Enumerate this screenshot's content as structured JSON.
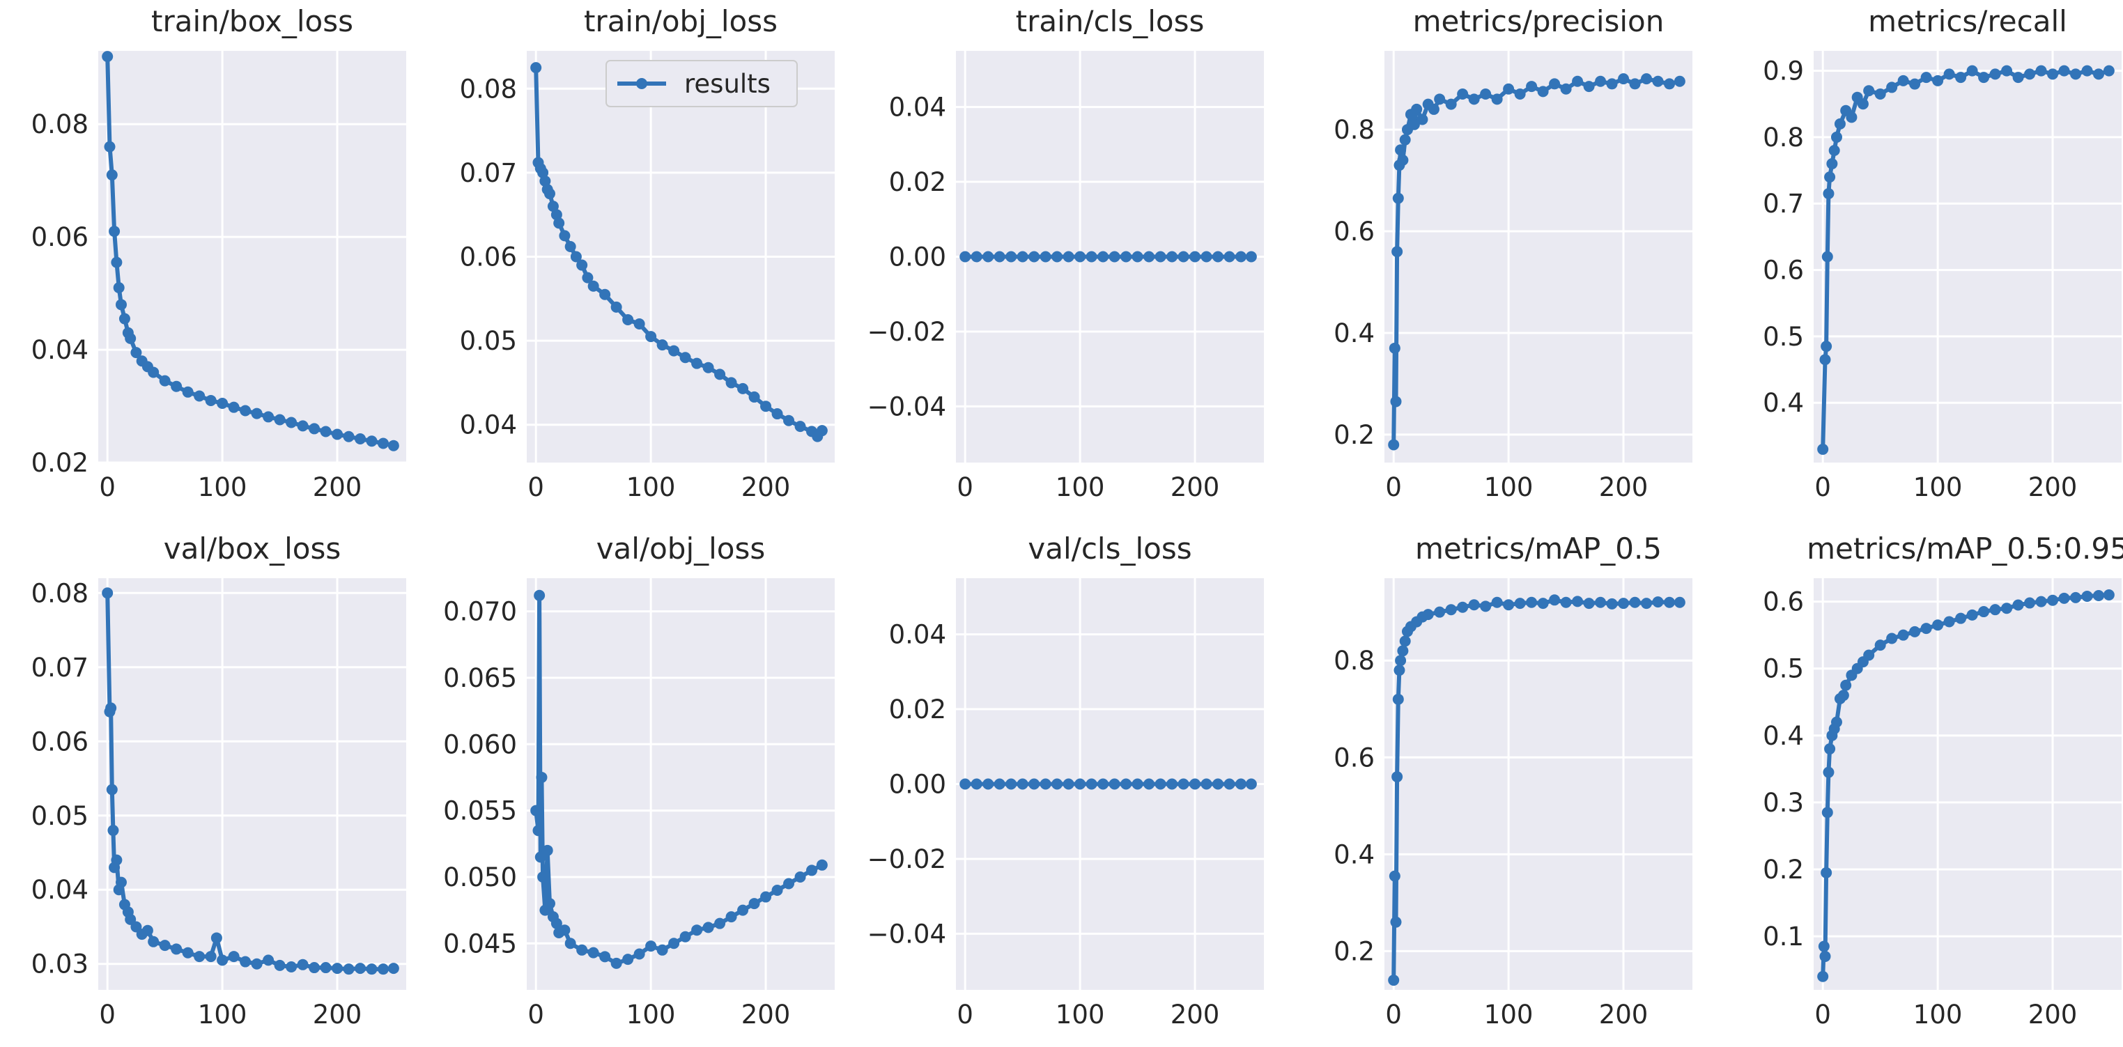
{
  "figure": {
    "background": "#ffffff",
    "panel_bg": "#eaeaf2",
    "grid": "#ffffff",
    "series_color": "#3274b8"
  },
  "legend": {
    "label": "results"
  },
  "chart_data": [
    {
      "type": "line",
      "title": "train/box_loss",
      "xlim": [
        -8,
        260
      ],
      "ylim": [
        0.02,
        0.093
      ],
      "xticks": [
        0,
        100,
        200
      ],
      "xtick_labels": [
        "0",
        "100",
        "200"
      ],
      "yticks": [
        0.02,
        0.04,
        0.06,
        0.08
      ],
      "ytick_labels": [
        "0.02",
        "0.04",
        "0.06",
        "0.08"
      ],
      "series": [
        {
          "name": "results",
          "x": [
            0,
            2,
            4,
            6,
            8,
            10,
            12,
            15,
            18,
            20,
            25,
            30,
            35,
            40,
            50,
            60,
            70,
            80,
            90,
            100,
            110,
            120,
            130,
            140,
            150,
            160,
            170,
            180,
            190,
            200,
            210,
            220,
            230,
            240,
            249
          ],
          "y": [
            0.092,
            0.076,
            0.071,
            0.061,
            0.0555,
            0.051,
            0.048,
            0.0455,
            0.043,
            0.042,
            0.0395,
            0.038,
            0.037,
            0.036,
            0.0345,
            0.0335,
            0.0325,
            0.0318,
            0.031,
            0.0305,
            0.0298,
            0.0292,
            0.0287,
            0.0281,
            0.0276,
            0.0271,
            0.0265,
            0.026,
            0.0255,
            0.025,
            0.0246,
            0.0242,
            0.0238,
            0.0234,
            0.023
          ]
        }
      ]
    },
    {
      "type": "line",
      "title": "train/obj_loss",
      "xlim": [
        -8,
        260
      ],
      "ylim": [
        0.0355,
        0.0845
      ],
      "xticks": [
        0,
        100,
        200
      ],
      "xtick_labels": [
        "0",
        "100",
        "200"
      ],
      "yticks": [
        0.04,
        0.05,
        0.06,
        0.07,
        0.08
      ],
      "ytick_labels": [
        "0.04",
        "0.05",
        "0.06",
        "0.07",
        "0.08"
      ],
      "series": [
        {
          "name": "results",
          "x": [
            0,
            2,
            4,
            6,
            8,
            10,
            12,
            15,
            18,
            20,
            25,
            30,
            35,
            40,
            45,
            50,
            60,
            70,
            80,
            90,
            100,
            110,
            120,
            130,
            140,
            150,
            160,
            170,
            180,
            190,
            200,
            210,
            220,
            230,
            240,
            245,
            249
          ],
          "y": [
            0.0825,
            0.0712,
            0.0705,
            0.07,
            0.069,
            0.068,
            0.0675,
            0.066,
            0.065,
            0.064,
            0.0625,
            0.0612,
            0.06,
            0.059,
            0.0575,
            0.0565,
            0.0555,
            0.054,
            0.0525,
            0.052,
            0.0505,
            0.0495,
            0.0488,
            0.048,
            0.0473,
            0.0468,
            0.046,
            0.045,
            0.0443,
            0.0433,
            0.0422,
            0.0413,
            0.0405,
            0.0398,
            0.0392,
            0.0386,
            0.0393
          ]
        }
      ]
    },
    {
      "type": "line",
      "title": "train/cls_loss",
      "xlim": [
        -8,
        260
      ],
      "ylim": [
        -0.055,
        0.055
      ],
      "xticks": [
        0,
        100,
        200
      ],
      "xtick_labels": [
        "0",
        "100",
        "200"
      ],
      "yticks": [
        -0.04,
        -0.02,
        0.0,
        0.02,
        0.04
      ],
      "ytick_labels": [
        "−0.04",
        "−0.02",
        "0.00",
        "0.02",
        "0.04"
      ],
      "series": [
        {
          "name": "results",
          "x": [
            0,
            10,
            20,
            30,
            40,
            50,
            60,
            70,
            80,
            90,
            100,
            110,
            120,
            130,
            140,
            150,
            160,
            170,
            180,
            190,
            200,
            210,
            220,
            230,
            240,
            249
          ],
          "y": [
            0,
            0,
            0,
            0,
            0,
            0,
            0,
            0,
            0,
            0,
            0,
            0,
            0,
            0,
            0,
            0,
            0,
            0,
            0,
            0,
            0,
            0,
            0,
            0,
            0,
            0
          ]
        }
      ]
    },
    {
      "type": "line",
      "title": "metrics/precision",
      "xlim": [
        -8,
        260
      ],
      "ylim": [
        0.145,
        0.955
      ],
      "xticks": [
        0,
        100,
        200
      ],
      "xtick_labels": [
        "0",
        "100",
        "200"
      ],
      "yticks": [
        0.2,
        0.4,
        0.6,
        0.8
      ],
      "ytick_labels": [
        "0.2",
        "0.4",
        "0.6",
        "0.8"
      ],
      "series": [
        {
          "name": "results",
          "x": [
            0,
            1,
            2,
            3,
            4,
            5,
            6,
            8,
            10,
            12,
            15,
            18,
            20,
            25,
            30,
            35,
            40,
            50,
            60,
            70,
            80,
            90,
            100,
            110,
            120,
            130,
            140,
            150,
            160,
            170,
            180,
            190,
            200,
            210,
            220,
            230,
            240,
            249
          ],
          "y": [
            0.18,
            0.37,
            0.265,
            0.56,
            0.665,
            0.73,
            0.76,
            0.74,
            0.78,
            0.8,
            0.83,
            0.81,
            0.84,
            0.82,
            0.85,
            0.84,
            0.86,
            0.85,
            0.87,
            0.86,
            0.87,
            0.86,
            0.88,
            0.87,
            0.885,
            0.875,
            0.89,
            0.88,
            0.895,
            0.885,
            0.895,
            0.89,
            0.9,
            0.89,
            0.9,
            0.895,
            0.89,
            0.895
          ]
        }
      ]
    },
    {
      "type": "line",
      "title": "metrics/recall",
      "xlim": [
        -8,
        260
      ],
      "ylim": [
        0.31,
        0.93
      ],
      "xticks": [
        0,
        100,
        200
      ],
      "xtick_labels": [
        "0",
        "100",
        "200"
      ],
      "yticks": [
        0.4,
        0.5,
        0.6,
        0.7,
        0.8,
        0.9
      ],
      "ytick_labels": [
        "0.4",
        "0.5",
        "0.6",
        "0.7",
        "0.8",
        "0.9"
      ],
      "series": [
        {
          "name": "results",
          "x": [
            0,
            2,
            3,
            4,
            5,
            6,
            8,
            10,
            12,
            15,
            20,
            25,
            30,
            35,
            40,
            50,
            60,
            70,
            80,
            90,
            100,
            110,
            120,
            130,
            140,
            150,
            160,
            170,
            180,
            190,
            200,
            210,
            220,
            230,
            240,
            249
          ],
          "y": [
            0.33,
            0.465,
            0.485,
            0.62,
            0.715,
            0.74,
            0.76,
            0.78,
            0.8,
            0.82,
            0.84,
            0.83,
            0.86,
            0.85,
            0.87,
            0.865,
            0.875,
            0.885,
            0.88,
            0.89,
            0.885,
            0.895,
            0.89,
            0.9,
            0.89,
            0.895,
            0.9,
            0.89,
            0.895,
            0.9,
            0.895,
            0.9,
            0.895,
            0.9,
            0.895,
            0.9
          ]
        }
      ]
    },
    {
      "type": "line",
      "title": "val/box_loss",
      "xlim": [
        -8,
        260
      ],
      "ylim": [
        0.0265,
        0.082
      ],
      "xticks": [
        0,
        100,
        200
      ],
      "xtick_labels": [
        "0",
        "100",
        "200"
      ],
      "yticks": [
        0.03,
        0.04,
        0.05,
        0.06,
        0.07,
        0.08
      ],
      "ytick_labels": [
        "0.03",
        "0.04",
        "0.05",
        "0.06",
        "0.07",
        "0.08"
      ],
      "series": [
        {
          "name": "results",
          "x": [
            0,
            2,
            3,
            4,
            5,
            6,
            8,
            10,
            12,
            15,
            18,
            20,
            25,
            30,
            35,
            40,
            50,
            60,
            70,
            80,
            90,
            95,
            100,
            110,
            120,
            130,
            140,
            150,
            160,
            170,
            180,
            190,
            200,
            210,
            220,
            230,
            240,
            249
          ],
          "y": [
            0.08,
            0.064,
            0.0645,
            0.0535,
            0.048,
            0.043,
            0.044,
            0.04,
            0.041,
            0.038,
            0.037,
            0.036,
            0.035,
            0.034,
            0.0345,
            0.033,
            0.0325,
            0.032,
            0.0315,
            0.031,
            0.031,
            0.0335,
            0.0305,
            0.031,
            0.0303,
            0.03,
            0.0305,
            0.0298,
            0.0296,
            0.0299,
            0.0295,
            0.0295,
            0.0294,
            0.0293,
            0.0294,
            0.0293,
            0.0293,
            0.0294
          ]
        }
      ]
    },
    {
      "type": "line",
      "title": "val/obj_loss",
      "xlim": [
        -8,
        260
      ],
      "ylim": [
        0.0415,
        0.0725
      ],
      "xticks": [
        0,
        100,
        200
      ],
      "xtick_labels": [
        "0",
        "100",
        "200"
      ],
      "yticks": [
        0.045,
        0.05,
        0.055,
        0.06,
        0.065,
        0.07
      ],
      "ytick_labels": [
        "0.045",
        "0.050",
        "0.055",
        "0.060",
        "0.065",
        "0.070"
      ],
      "series": [
        {
          "name": "results",
          "x": [
            0,
            2,
            3,
            4,
            5,
            6,
            8,
            10,
            12,
            15,
            18,
            20,
            25,
            30,
            40,
            50,
            60,
            70,
            80,
            90,
            100,
            110,
            120,
            130,
            140,
            150,
            160,
            170,
            180,
            190,
            200,
            210,
            220,
            230,
            240,
            249
          ],
          "y": [
            0.055,
            0.0535,
            0.0712,
            0.0515,
            0.0575,
            0.05,
            0.0475,
            0.052,
            0.048,
            0.047,
            0.0465,
            0.0458,
            0.046,
            0.045,
            0.0445,
            0.0443,
            0.044,
            0.0435,
            0.0438,
            0.0442,
            0.0448,
            0.0445,
            0.045,
            0.0455,
            0.046,
            0.0462,
            0.0465,
            0.047,
            0.0475,
            0.048,
            0.0485,
            0.049,
            0.0495,
            0.05,
            0.0505,
            0.0509
          ]
        }
      ]
    },
    {
      "type": "line",
      "title": "val/cls_loss",
      "xlim": [
        -8,
        260
      ],
      "ylim": [
        -0.055,
        0.055
      ],
      "xticks": [
        0,
        100,
        200
      ],
      "xtick_labels": [
        "0",
        "100",
        "200"
      ],
      "yticks": [
        -0.04,
        -0.02,
        0.0,
        0.02,
        0.04
      ],
      "ytick_labels": [
        "−0.04",
        "−0.02",
        "0.00",
        "0.02",
        "0.04"
      ],
      "series": [
        {
          "name": "results",
          "x": [
            0,
            10,
            20,
            30,
            40,
            50,
            60,
            70,
            80,
            90,
            100,
            110,
            120,
            130,
            140,
            150,
            160,
            170,
            180,
            190,
            200,
            210,
            220,
            230,
            240,
            249
          ],
          "y": [
            0,
            0,
            0,
            0,
            0,
            0,
            0,
            0,
            0,
            0,
            0,
            0,
            0,
            0,
            0,
            0,
            0,
            0,
            0,
            0,
            0,
            0,
            0,
            0,
            0,
            0
          ]
        }
      ]
    },
    {
      "type": "line",
      "title": "metrics/mAP_0.5",
      "xlim": [
        -8,
        260
      ],
      "ylim": [
        0.12,
        0.97
      ],
      "xticks": [
        0,
        100,
        200
      ],
      "xtick_labels": [
        "0",
        "100",
        "200"
      ],
      "yticks": [
        0.2,
        0.4,
        0.6,
        0.8
      ],
      "ytick_labels": [
        "0.2",
        "0.4",
        "0.6",
        "0.8"
      ],
      "series": [
        {
          "name": "results",
          "x": [
            0,
            1,
            2,
            3,
            4,
            5,
            6,
            8,
            10,
            12,
            15,
            20,
            25,
            30,
            40,
            50,
            60,
            70,
            80,
            90,
            100,
            110,
            120,
            130,
            140,
            150,
            160,
            170,
            180,
            190,
            200,
            210,
            220,
            230,
            240,
            249
          ],
          "y": [
            0.14,
            0.355,
            0.26,
            0.56,
            0.72,
            0.78,
            0.8,
            0.82,
            0.84,
            0.86,
            0.87,
            0.88,
            0.89,
            0.895,
            0.9,
            0.905,
            0.91,
            0.915,
            0.912,
            0.92,
            0.915,
            0.918,
            0.92,
            0.918,
            0.925,
            0.92,
            0.922,
            0.918,
            0.92,
            0.917,
            0.918,
            0.92,
            0.918,
            0.921,
            0.92,
            0.92
          ]
        }
      ]
    },
    {
      "type": "line",
      "title": "metrics/mAP_0.5:0.95",
      "xlim": [
        -8,
        260
      ],
      "ylim": [
        0.02,
        0.635
      ],
      "xticks": [
        0,
        100,
        200
      ],
      "xtick_labels": [
        "0",
        "100",
        "200"
      ],
      "yticks": [
        0.1,
        0.2,
        0.3,
        0.4,
        0.5,
        0.6
      ],
      "ytick_labels": [
        "0.1",
        "0.2",
        "0.3",
        "0.4",
        "0.5",
        "0.6"
      ],
      "series": [
        {
          "name": "results",
          "x": [
            0,
            1,
            2,
            3,
            4,
            5,
            6,
            8,
            10,
            12,
            15,
            18,
            20,
            25,
            30,
            35,
            40,
            50,
            60,
            70,
            80,
            90,
            100,
            110,
            120,
            130,
            140,
            150,
            160,
            170,
            180,
            190,
            200,
            210,
            220,
            230,
            240,
            249
          ],
          "y": [
            0.04,
            0.085,
            0.07,
            0.195,
            0.285,
            0.345,
            0.38,
            0.4,
            0.41,
            0.42,
            0.455,
            0.46,
            0.475,
            0.49,
            0.5,
            0.51,
            0.52,
            0.535,
            0.545,
            0.55,
            0.555,
            0.56,
            0.565,
            0.57,
            0.575,
            0.58,
            0.585,
            0.588,
            0.59,
            0.595,
            0.598,
            0.6,
            0.602,
            0.605,
            0.606,
            0.608,
            0.609,
            0.61
          ]
        }
      ]
    }
  ]
}
